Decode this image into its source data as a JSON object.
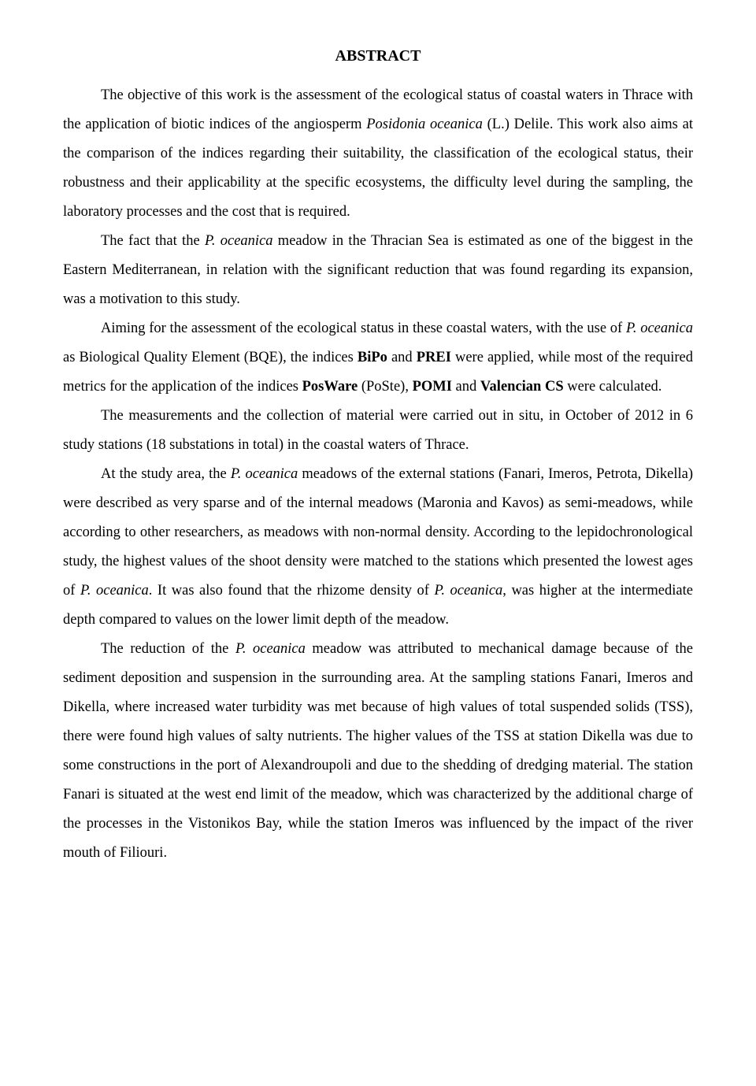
{
  "title": "ABSTRACT",
  "p1_a": "The objective of this work is the assessment of the ecological status of coastal waters in Thrace with the application of biotic indices of the angiosperm ",
  "p1_b": "Posidonia oceanica",
  "p1_c": " (L.) Delile. This work also aims at the comparison of the indices regarding their suitability, the classification of the ecological status, their robustness and their applicability at the specific ecosystems, the difficulty level during the sampling, the laboratory processes and the cost that is required.",
  "p2_a": "The fact that the ",
  "p2_b": "P. oceanica",
  "p2_c": " meadow in the Thracian Sea is estimated as one of the biggest in the Eastern Mediterranean, in relation with the significant reduction that was found regarding its expansion, was a motivation to this study.",
  "p3_a": "Aiming for the assessment of the ecological status in these coastal waters, with the use of ",
  "p3_b": "P. oceanica",
  "p3_c": " as Biological Quality Element (BQE), the indices ",
  "p3_d": "BiPo",
  "p3_e": " and ",
  "p3_f": "PREI",
  "p3_g": " were applied, while most of the required metrics for the application of the indices ",
  "p3_h": "PosWare",
  "p3_i": " (PoSte), ",
  "p3_j": "POMI",
  "p3_k": " and ",
  "p3_l": "Valencian CS",
  "p3_m": " were calculated.",
  "p4": "The measurements and the collection of material were carried out in situ, in October of 2012 in 6 study stations (18 substations in total) in the coastal waters of Thrace.",
  "p5_a": "At the study area, the ",
  "p5_b": "P. oceanica",
  "p5_c": " meadows of the external stations (Fanari, Imeros, Petrota, Dikella) were described as very sparse and of the internal meadows (Maronia and Kavos) as semi-meadows, while according to other researchers, as meadows with non-normal density. According to the lepidochronological study, the highest values of the shoot density were matched to the stations which presented the lowest ages of ",
  "p5_d": "P. oceanica",
  "p5_e": ". It was also found that the rhizome density of ",
  "p5_f": "P. oceanica",
  "p5_g": ", was higher at the intermediate depth compared to values on the lower limit depth of the meadow.",
  "p6_a": "The reduction of the ",
  "p6_b": "P. oceanica",
  "p6_c": " meadow was attributed to mechanical damage because of the sediment deposition and suspension in the surrounding area. At the sampling stations Fanari, Imeros and Dikella, where increased water turbidity was met because of high values of total suspended solids (TSS), there were found high values of salty nutrients. The higher values of the TSS at station Dikella was due to some constructions in the port of Alexandroupoli and due to the shedding of dredging material. The station Fanari is situated at the west end limit of the meadow, which was characterized by the additional charge of the processes in the Vistonikos Bay, while the station Imeros was influenced by the impact of the river mouth of Filiouri."
}
